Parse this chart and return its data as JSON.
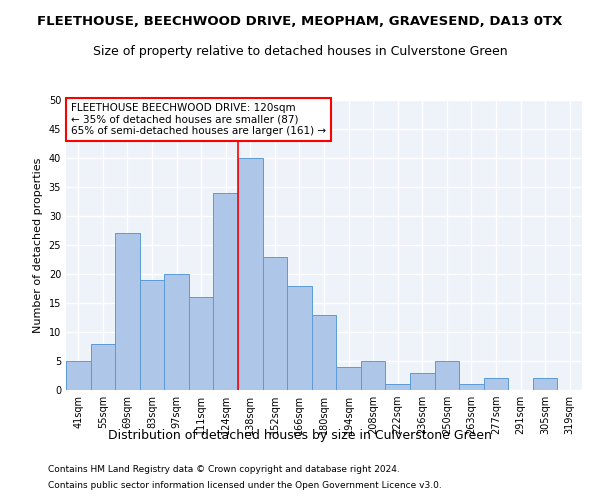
{
  "title": "FLEETHOUSE, BEECHWOOD DRIVE, MEOPHAM, GRAVESEND, DA13 0TX",
  "subtitle": "Size of property relative to detached houses in Culverstone Green",
  "xlabel": "Distribution of detached houses by size in Culverstone Green",
  "ylabel": "Number of detached properties",
  "footnote1": "Contains HM Land Registry data © Crown copyright and database right 2024.",
  "footnote2": "Contains public sector information licensed under the Open Government Licence v3.0.",
  "bar_categories": [
    "41sqm",
    "55sqm",
    "69sqm",
    "83sqm",
    "97sqm",
    "111sqm",
    "124sqm",
    "138sqm",
    "152sqm",
    "166sqm",
    "180sqm",
    "194sqm",
    "208sqm",
    "222sqm",
    "236sqm",
    "250sqm",
    "263sqm",
    "277sqm",
    "291sqm",
    "305sqm",
    "319sqm"
  ],
  "bar_values": [
    5,
    8,
    27,
    19,
    20,
    16,
    34,
    40,
    23,
    18,
    13,
    4,
    5,
    1,
    3,
    5,
    1,
    2,
    0,
    2,
    0
  ],
  "bar_color": "#aec6e8",
  "bar_edge_color": "#5b9bd5",
  "vline_x": 6.5,
  "vline_color": "red",
  "annotation_title": "FLEETHOUSE BEECHWOOD DRIVE: 120sqm",
  "annotation_line1": "← 35% of detached houses are smaller (87)",
  "annotation_line2": "65% of semi-detached houses are larger (161) →",
  "annotation_box_color": "white",
  "annotation_box_edge": "red",
  "ylim": [
    0,
    50
  ],
  "yticks": [
    0,
    5,
    10,
    15,
    20,
    25,
    30,
    35,
    40,
    45,
    50
  ],
  "background_color": "#eef2f9",
  "grid_color": "white",
  "title_fontsize": 9.5,
  "subtitle_fontsize": 9,
  "xlabel_fontsize": 9,
  "ylabel_fontsize": 8,
  "tick_fontsize": 7,
  "annotation_fontsize": 7.5,
  "footnote_fontsize": 6.5
}
